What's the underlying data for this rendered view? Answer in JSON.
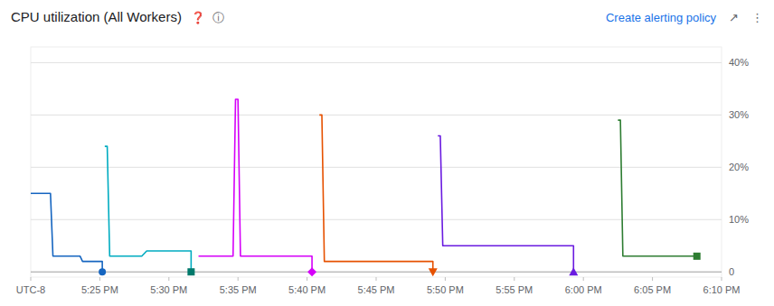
{
  "chart_data": {
    "type": "line",
    "title": "CPU utilization (All Workers)",
    "annotations": [
      "❓",
      "ⓘ",
      "Create alerting policy",
      "↗",
      "⋮"
    ],
    "xlim": [
      0,
      280
    ],
    "xticks": [
      {
        "value": 0,
        "label": "UTC-8"
      },
      {
        "value": 28,
        "label": "5:25 PM"
      },
      {
        "value": 56,
        "label": "5:30 PM"
      },
      {
        "value": 84,
        "label": "5:35 PM"
      },
      {
        "value": 112,
        "label": "5:40 PM"
      },
      {
        "value": 140,
        "label": "5:45 PM"
      },
      {
        "value": 168,
        "label": "5:50 PM"
      },
      {
        "value": 196,
        "label": "5:55 PM"
      },
      {
        "value": 224,
        "label": "6:00 PM"
      },
      {
        "value": 252,
        "label": "6:05 PM"
      },
      {
        "value": 280,
        "label": "6:10 PM"
      }
    ],
    "ylim": [
      -1,
      43
    ],
    "yticks": [
      0,
      {
        "value": 10,
        "label": "10%"
      },
      {
        "value": 20,
        "label": "20%"
      },
      {
        "value": 30,
        "label": "30%"
      },
      {
        "value": 40,
        "label": "40%"
      }
    ],
    "grid": true,
    "series": [
      {
        "type": "line",
        "color": "#1565c0",
        "x": [
          0,
          8,
          9,
          20,
          21,
          29,
          29
        ],
        "values": [
          15,
          15,
          3,
          3,
          2,
          2,
          0
        ]
      },
      {
        "type": "scatter",
        "marker": "circle",
        "color": "#1565c0",
        "x": [
          29
        ],
        "values": [
          0
        ]
      },
      {
        "type": "line",
        "color": "#00acc1",
        "x": [
          30,
          31,
          32,
          45,
          47,
          53,
          65,
          65
        ],
        "values": [
          24,
          24,
          3,
          3,
          4,
          4,
          4,
          0
        ]
      },
      {
        "type": "scatter",
        "marker": "square",
        "color": "#00796b",
        "x": [
          65
        ],
        "values": [
          0
        ]
      },
      {
        "type": "line",
        "color": "#d500f9",
        "x": [
          68,
          82,
          83,
          84,
          85,
          100,
          114,
          114
        ],
        "values": [
          3,
          3,
          33,
          33,
          3,
          3,
          3,
          0
        ]
      },
      {
        "type": "scatter",
        "marker": "diamond",
        "color": "#d500f9",
        "x": [
          114
        ],
        "values": [
          0
        ]
      },
      {
        "type": "line",
        "color": "#e65100",
        "x": [
          117,
          118,
          119,
          140,
          163,
          163
        ],
        "values": [
          30,
          30,
          2,
          2,
          2,
          0
        ]
      },
      {
        "type": "scatter",
        "marker": "triangle-down",
        "color": "#e65100",
        "x": [
          163
        ],
        "values": [
          0
        ]
      },
      {
        "type": "line",
        "color": "#6a1be0",
        "x": [
          165,
          166,
          167,
          195,
          200,
          220,
          220
        ],
        "values": [
          26,
          26,
          5,
          5,
          5,
          5,
          0
        ]
      },
      {
        "type": "scatter",
        "marker": "triangle-up",
        "color": "#6a1be0",
        "x": [
          220
        ],
        "values": [
          0
        ]
      },
      {
        "type": "line",
        "color": "#2e7d32",
        "x": [
          238,
          239,
          240,
          255,
          270
        ],
        "values": [
          29,
          29,
          3,
          3,
          3
        ]
      },
      {
        "type": "scatter",
        "marker": "square",
        "color": "#2e7d32",
        "x": [
          270
        ],
        "values": [
          3
        ]
      }
    ]
  }
}
